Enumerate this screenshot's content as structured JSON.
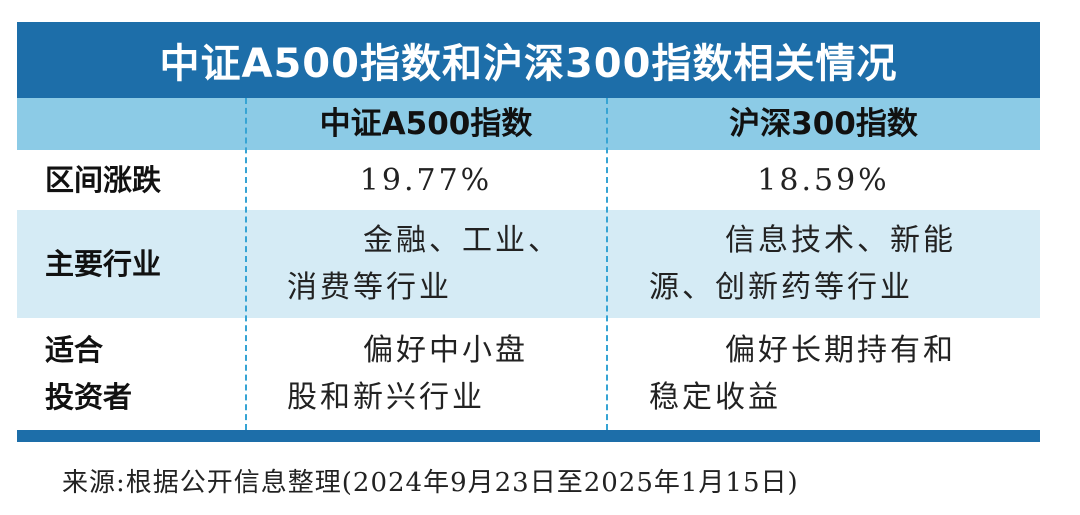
{
  "title": "中证A500指数和沪深300指数相关情况",
  "table": {
    "header": [
      "中证A500指数",
      "沪深300指数"
    ],
    "rows": [
      [
        [
          "区间涨跌"
        ],
        [
          "19.77%"
        ],
        [
          "18.59%"
        ]
      ],
      [
        [
          "主要行业"
        ],
        [
          "金融、工业、",
          "消费等行业"
        ],
        [
          "信息技术、新能",
          "源、创新药等行业"
        ]
      ],
      [
        [
          "适合",
          "投资者"
        ],
        [
          "偏好中小盘",
          "股和新兴行业"
        ],
        [
          "偏好长期持有和",
          "稳定收益"
        ]
      ]
    ]
  },
  "source": "来源:根据公开信息整理(2024年9月23日至2025年1月15日)"
}
